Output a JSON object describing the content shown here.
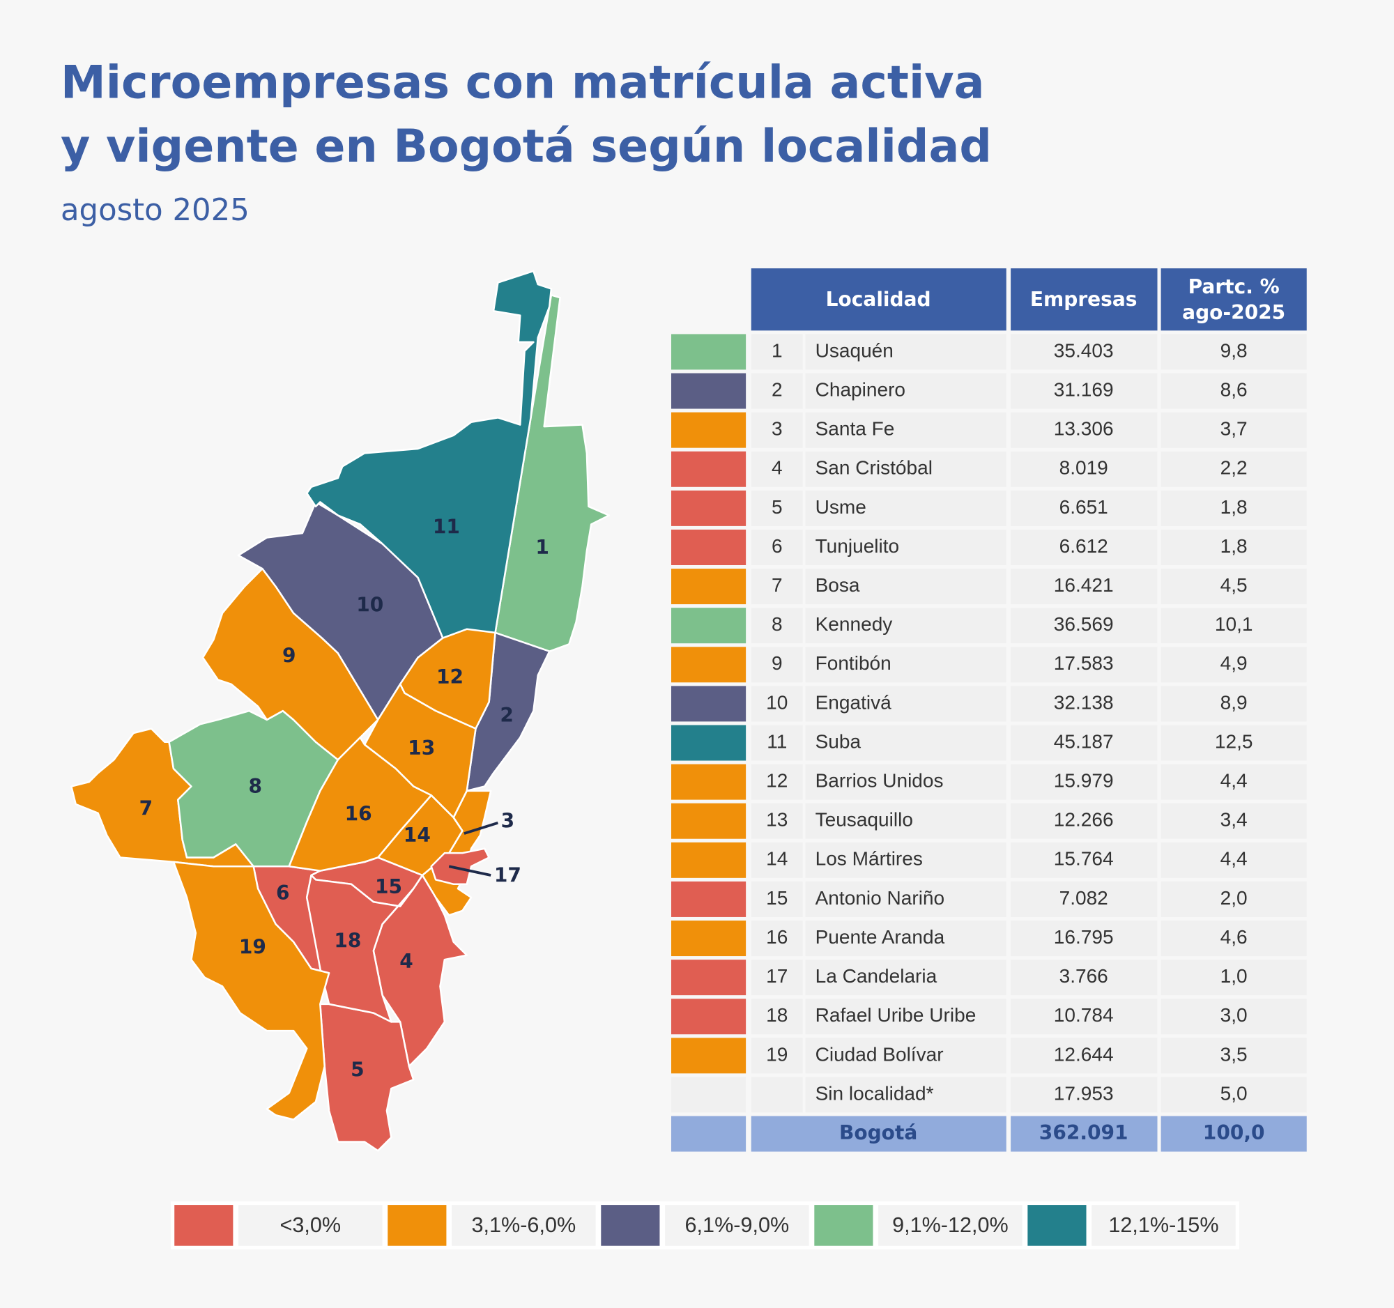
{
  "header": {
    "title": [
      "Microempresas con matrícula activa",
      "y vigente en Bogotá según localidad"
    ],
    "subtitle": "agosto 2025"
  },
  "table": {
    "header": [
      "Localidad",
      "Empresas",
      [
        "Partc. %",
        "ago-2025"
      ]
    ],
    "rows": [
      {
        "number": "1",
        "name": "Usaquén",
        "empresas": "35.403",
        "share": "9,8",
        "color": "#7dc08c"
      },
      {
        "number": "2",
        "name": "Chapinero",
        "empresas": "31.169",
        "share": "8,6",
        "color": "#5b5e85"
      },
      {
        "number": "3",
        "name": "Santa Fe",
        "empresas": "13.306",
        "share": "3,7",
        "color": "#f0900a"
      },
      {
        "number": "4",
        "name": "San Cristóbal",
        "empresas": "8.019",
        "share": "2,2",
        "color": "#e05e52"
      },
      {
        "number": "5",
        "name": "Usme",
        "empresas": "6.651",
        "share": "1,8",
        "color": "#e05e52"
      },
      {
        "number": "6",
        "name": "Tunjuelito",
        "empresas": "6.612",
        "share": "1,8",
        "color": "#e05e52"
      },
      {
        "number": "7",
        "name": "Bosa",
        "empresas": "16.421",
        "share": "4,5",
        "color": "#f0900a"
      },
      {
        "number": "8",
        "name": "Kennedy",
        "empresas": "36.569",
        "share": "10,1",
        "color": "#7dc08c"
      },
      {
        "number": "9",
        "name": "Fontibón",
        "empresas": "17.583",
        "share": "4,9",
        "color": "#f0900a"
      },
      {
        "number": "10",
        "name": "Engativá",
        "empresas": "32.138",
        "share": "8,9",
        "color": "#5b5e85"
      },
      {
        "number": "11",
        "name": "Suba",
        "empresas": "45.187",
        "share": "12,5",
        "color": "#23808c"
      },
      {
        "number": "12",
        "name": "Barrios Unidos",
        "empresas": "15.979",
        "share": "4,4",
        "color": "#f0900a"
      },
      {
        "number": "13",
        "name": "Teusaquillo",
        "empresas": "12.266",
        "share": "3,4",
        "color": "#f0900a"
      },
      {
        "number": "14",
        "name": "Los Mártires",
        "empresas": "15.764",
        "share": "4,4",
        "color": "#f0900a"
      },
      {
        "number": "15",
        "name": "Antonio Nariño",
        "empresas": "7.082",
        "share": "2,0",
        "color": "#e05e52"
      },
      {
        "number": "16",
        "name": "Puente Aranda",
        "empresas": "16.795",
        "share": "4,6",
        "color": "#f0900a"
      },
      {
        "number": "17",
        "name": "La Candelaria",
        "empresas": "3.766",
        "share": "1,0",
        "color": "#e05e52"
      },
      {
        "number": "18",
        "name": "Rafael Uribe Uribe",
        "empresas": "10.784",
        "share": "3,0",
        "color": "#e05e52"
      },
      {
        "number": "19",
        "name": "Ciudad Bolívar",
        "empresas": "12.644",
        "share": "3,5",
        "color": "#f0900a"
      },
      {
        "name": "Sin localidad*",
        "empresas": "17.953",
        "share": "5,0"
      }
    ],
    "total": {
      "name": "Bogotá",
      "empresas": "362.091",
      "share": "100,0"
    }
  },
  "legend": [
    {
      "label": "<3,0%",
      "color": "#e05e52"
    },
    {
      "label": "3,1%-6,0%",
      "color": "#f0900a"
    },
    {
      "label": "6,1%-9,0%",
      "color": "#5b5e85"
    },
    {
      "label": "9,1%-12,0%",
      "color": "#7dc08c"
    },
    {
      "label": "12,1%-15%",
      "color": "#23808c"
    }
  ]
}
